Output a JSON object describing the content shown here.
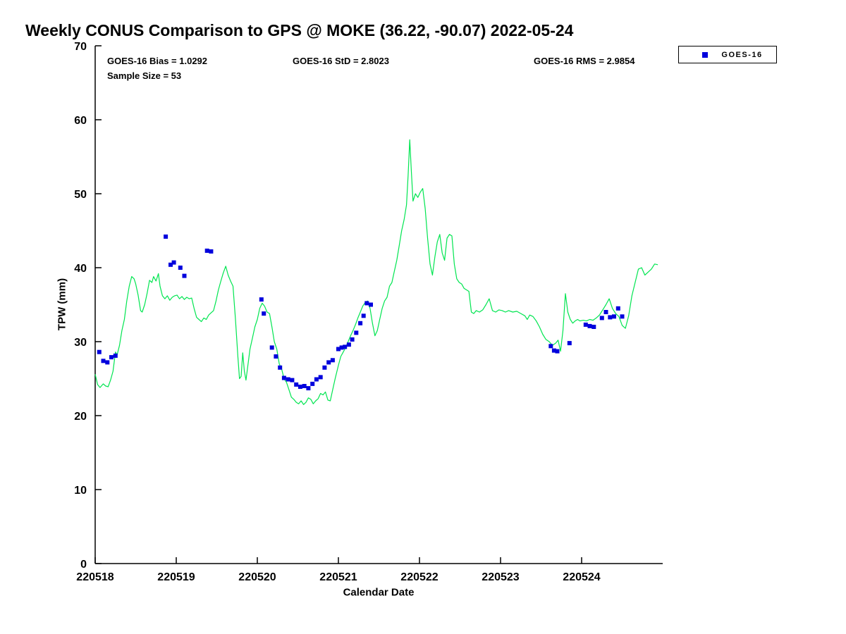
{
  "figure": {
    "title": "Weekly CONUS Comparison to GPS @ MOKE (36.22, -90.07) 2022-05-24",
    "annotations": {
      "bias": "GOES-16 Bias = 1.0292",
      "std": "GOES-16 StD = 2.8023",
      "rms": "GOES-16 RMS = 2.9854",
      "sample_size": "Sample Size = 53"
    },
    "legend": {
      "entries": [
        {
          "label": "GOES-16",
          "marker": "square",
          "color": "#0000dd"
        }
      ]
    }
  },
  "chart_data": {
    "type": "line",
    "title": "Weekly CONUS Comparison to GPS @ MOKE (36.22, -90.07) 2022-05-24",
    "xlabel": "Calendar Date",
    "ylabel": "TPW (mm)",
    "xlim_days": [
      0,
      7
    ],
    "ylim": [
      0,
      70
    ],
    "grid": false,
    "legend_position": "top-right-outside",
    "xticks": [
      {
        "day": 0,
        "label": "220518"
      },
      {
        "day": 1,
        "label": "220519"
      },
      {
        "day": 2,
        "label": "220520"
      },
      {
        "day": 3,
        "label": "220521"
      },
      {
        "day": 4,
        "label": "220522"
      },
      {
        "day": 5,
        "label": "220523"
      },
      {
        "day": 6,
        "label": "220524"
      }
    ],
    "yticks": [
      0,
      10,
      20,
      30,
      40,
      50,
      60,
      70
    ],
    "stats": {
      "bias": 1.0292,
      "std": 2.8023,
      "rms": 2.9854,
      "sample_size": 53
    },
    "series": [
      {
        "name": "GPS",
        "type": "line",
        "color": "#00e550",
        "points": [
          [
            0.0,
            25.6
          ],
          [
            0.03,
            24.2
          ],
          [
            0.06,
            23.8
          ],
          [
            0.1,
            24.3
          ],
          [
            0.13,
            24.0
          ],
          [
            0.16,
            23.9
          ],
          [
            0.19,
            24.8
          ],
          [
            0.22,
            26.0
          ],
          [
            0.25,
            28.6
          ],
          [
            0.27,
            28.2
          ],
          [
            0.3,
            29.5
          ],
          [
            0.33,
            31.5
          ],
          [
            0.36,
            33.0
          ],
          [
            0.39,
            35.5
          ],
          [
            0.42,
            37.5
          ],
          [
            0.45,
            38.8
          ],
          [
            0.48,
            38.5
          ],
          [
            0.5,
            37.8
          ],
          [
            0.53,
            36.3
          ],
          [
            0.56,
            34.2
          ],
          [
            0.58,
            34.0
          ],
          [
            0.61,
            35.0
          ],
          [
            0.64,
            36.5
          ],
          [
            0.67,
            38.3
          ],
          [
            0.7,
            38.0
          ],
          [
            0.72,
            38.8
          ],
          [
            0.75,
            38.2
          ],
          [
            0.78,
            39.2
          ],
          [
            0.8,
            37.5
          ],
          [
            0.83,
            36.2
          ],
          [
            0.86,
            35.8
          ],
          [
            0.89,
            36.2
          ],
          [
            0.92,
            35.6
          ],
          [
            0.95,
            36.0
          ],
          [
            0.98,
            36.2
          ],
          [
            1.01,
            36.3
          ],
          [
            1.04,
            35.8
          ],
          [
            1.07,
            36.1
          ],
          [
            1.1,
            35.7
          ],
          [
            1.13,
            36.0
          ],
          [
            1.16,
            35.8
          ],
          [
            1.19,
            35.9
          ],
          [
            1.22,
            34.5
          ],
          [
            1.25,
            33.3
          ],
          [
            1.28,
            33.0
          ],
          [
            1.31,
            32.7
          ],
          [
            1.34,
            33.2
          ],
          [
            1.37,
            33.0
          ],
          [
            1.4,
            33.6
          ],
          [
            1.43,
            33.9
          ],
          [
            1.46,
            34.2
          ],
          [
            1.49,
            35.5
          ],
          [
            1.52,
            37.0
          ],
          [
            1.55,
            38.2
          ],
          [
            1.58,
            39.3
          ],
          [
            1.61,
            40.2
          ],
          [
            1.64,
            39.0
          ],
          [
            1.67,
            38.2
          ],
          [
            1.7,
            37.5
          ],
          [
            1.73,
            33.0
          ],
          [
            1.76,
            28.0
          ],
          [
            1.78,
            25.0
          ],
          [
            1.8,
            25.3
          ],
          [
            1.82,
            28.5
          ],
          [
            1.84,
            26.0
          ],
          [
            1.86,
            24.8
          ],
          [
            1.88,
            26.5
          ],
          [
            1.91,
            29.0
          ],
          [
            1.94,
            30.5
          ],
          [
            1.97,
            32.0
          ],
          [
            2.0,
            33.0
          ],
          [
            2.03,
            34.5
          ],
          [
            2.06,
            35.2
          ],
          [
            2.09,
            34.8
          ],
          [
            2.12,
            34.0
          ],
          [
            2.15,
            33.8
          ],
          [
            2.18,
            32.0
          ],
          [
            2.21,
            30.0
          ],
          [
            2.24,
            29.0
          ],
          [
            2.27,
            27.0
          ],
          [
            2.3,
            26.3
          ],
          [
            2.33,
            25.0
          ],
          [
            2.36,
            24.5
          ],
          [
            2.39,
            23.5
          ],
          [
            2.42,
            22.5
          ],
          [
            2.45,
            22.2
          ],
          [
            2.48,
            21.8
          ],
          [
            2.51,
            21.6
          ],
          [
            2.54,
            22.0
          ],
          [
            2.57,
            21.5
          ],
          [
            2.6,
            21.8
          ],
          [
            2.63,
            22.4
          ],
          [
            2.66,
            22.2
          ],
          [
            2.69,
            21.6
          ],
          [
            2.72,
            22.0
          ],
          [
            2.75,
            22.3
          ],
          [
            2.78,
            23.0
          ],
          [
            2.81,
            22.8
          ],
          [
            2.84,
            23.2
          ],
          [
            2.87,
            22.1
          ],
          [
            2.9,
            22.0
          ],
          [
            2.93,
            23.5
          ],
          [
            2.96,
            25.0
          ],
          [
            3.0,
            26.8
          ],
          [
            3.03,
            28.0
          ],
          [
            3.06,
            28.6
          ],
          [
            3.09,
            29.2
          ],
          [
            3.12,
            30.0
          ],
          [
            3.15,
            30.8
          ],
          [
            3.18,
            31.5
          ],
          [
            3.21,
            32.3
          ],
          [
            3.24,
            33.2
          ],
          [
            3.27,
            34.0
          ],
          [
            3.3,
            34.8
          ],
          [
            3.33,
            35.3
          ],
          [
            3.36,
            35.5
          ],
          [
            3.39,
            34.5
          ],
          [
            3.42,
            32.5
          ],
          [
            3.45,
            30.8
          ],
          [
            3.48,
            31.5
          ],
          [
            3.51,
            33.0
          ],
          [
            3.54,
            34.5
          ],
          [
            3.57,
            35.5
          ],
          [
            3.6,
            36.0
          ],
          [
            3.63,
            37.5
          ],
          [
            3.66,
            38.0
          ],
          [
            3.69,
            39.5
          ],
          [
            3.72,
            41.0
          ],
          [
            3.75,
            43.0
          ],
          [
            3.78,
            45.0
          ],
          [
            3.81,
            46.5
          ],
          [
            3.84,
            48.5
          ],
          [
            3.86,
            52.5
          ],
          [
            3.88,
            57.3
          ],
          [
            3.9,
            53.0
          ],
          [
            3.92,
            49.0
          ],
          [
            3.95,
            50.0
          ],
          [
            3.98,
            49.5
          ],
          [
            4.01,
            50.2
          ],
          [
            4.04,
            50.7
          ],
          [
            4.07,
            48.0
          ],
          [
            4.1,
            44.0
          ],
          [
            4.13,
            40.5
          ],
          [
            4.16,
            39.0
          ],
          [
            4.19,
            41.5
          ],
          [
            4.22,
            43.5
          ],
          [
            4.25,
            44.5
          ],
          [
            4.28,
            42.0
          ],
          [
            4.31,
            41.0
          ],
          [
            4.34,
            44.0
          ],
          [
            4.37,
            44.5
          ],
          [
            4.4,
            44.3
          ],
          [
            4.43,
            40.5
          ],
          [
            4.46,
            38.5
          ],
          [
            4.49,
            38.0
          ],
          [
            4.52,
            37.8
          ],
          [
            4.55,
            37.2
          ],
          [
            4.58,
            37.0
          ],
          [
            4.61,
            36.8
          ],
          [
            4.64,
            34.0
          ],
          [
            4.67,
            33.8
          ],
          [
            4.7,
            34.2
          ],
          [
            4.74,
            34.0
          ],
          [
            4.78,
            34.3
          ],
          [
            4.82,
            35.0
          ],
          [
            4.86,
            35.8
          ],
          [
            4.9,
            34.2
          ],
          [
            4.94,
            34.0
          ],
          [
            4.98,
            34.3
          ],
          [
            5.02,
            34.2
          ],
          [
            5.06,
            34.0
          ],
          [
            5.1,
            34.2
          ],
          [
            5.15,
            34.0
          ],
          [
            5.2,
            34.1
          ],
          [
            5.25,
            33.8
          ],
          [
            5.3,
            33.5
          ],
          [
            5.33,
            33.0
          ],
          [
            5.36,
            33.6
          ],
          [
            5.4,
            33.4
          ],
          [
            5.44,
            32.8
          ],
          [
            5.48,
            32.0
          ],
          [
            5.52,
            31.0
          ],
          [
            5.56,
            30.3
          ],
          [
            5.6,
            30.0
          ],
          [
            5.64,
            29.5
          ],
          [
            5.68,
            29.8
          ],
          [
            5.71,
            30.2
          ],
          [
            5.74,
            28.7
          ],
          [
            5.77,
            31.5
          ],
          [
            5.8,
            36.5
          ],
          [
            5.83,
            34.0
          ],
          [
            5.86,
            33.0
          ],
          [
            5.89,
            32.5
          ],
          [
            5.92,
            32.8
          ],
          [
            5.95,
            33.0
          ],
          [
            5.98,
            32.8
          ],
          [
            6.02,
            32.9
          ],
          [
            6.06,
            32.8
          ],
          [
            6.1,
            33.0
          ],
          [
            6.14,
            32.9
          ],
          [
            6.18,
            33.2
          ],
          [
            6.22,
            33.6
          ],
          [
            6.26,
            34.3
          ],
          [
            6.3,
            35.0
          ],
          [
            6.34,
            35.8
          ],
          [
            6.38,
            34.5
          ],
          [
            6.42,
            33.8
          ],
          [
            6.46,
            33.4
          ],
          [
            6.5,
            32.2
          ],
          [
            6.54,
            31.8
          ],
          [
            6.58,
            33.5
          ],
          [
            6.62,
            36.2
          ],
          [
            6.66,
            38.0
          ],
          [
            6.7,
            39.8
          ],
          [
            6.74,
            40.0
          ],
          [
            6.78,
            39.0
          ],
          [
            6.82,
            39.4
          ],
          [
            6.86,
            39.8
          ],
          [
            6.9,
            40.5
          ],
          [
            6.94,
            40.4
          ]
        ]
      },
      {
        "name": "GOES-16",
        "type": "scatter",
        "marker": "square",
        "color": "#0000dd",
        "points": [
          [
            0.05,
            28.6
          ],
          [
            0.1,
            27.4
          ],
          [
            0.15,
            27.2
          ],
          [
            0.2,
            27.9
          ],
          [
            0.25,
            28.1
          ],
          [
            0.87,
            44.2
          ],
          [
            0.93,
            40.4
          ],
          [
            0.97,
            40.7
          ],
          [
            1.05,
            40.0
          ],
          [
            1.1,
            38.9
          ],
          [
            1.38,
            42.3
          ],
          [
            1.43,
            42.2
          ],
          [
            2.05,
            35.7
          ],
          [
            2.08,
            33.8
          ],
          [
            2.18,
            29.2
          ],
          [
            2.23,
            28.0
          ],
          [
            2.28,
            26.5
          ],
          [
            2.33,
            25.1
          ],
          [
            2.38,
            24.9
          ],
          [
            2.43,
            24.8
          ],
          [
            2.48,
            24.2
          ],
          [
            2.53,
            23.9
          ],
          [
            2.58,
            24.0
          ],
          [
            2.63,
            23.7
          ],
          [
            2.68,
            24.3
          ],
          [
            2.73,
            24.9
          ],
          [
            2.78,
            25.2
          ],
          [
            2.83,
            26.5
          ],
          [
            2.88,
            27.2
          ],
          [
            2.93,
            27.5
          ],
          [
            3.0,
            29.0
          ],
          [
            3.04,
            29.2
          ],
          [
            3.08,
            29.3
          ],
          [
            3.13,
            29.6
          ],
          [
            3.17,
            30.3
          ],
          [
            3.22,
            31.2
          ],
          [
            3.27,
            32.5
          ],
          [
            3.31,
            33.5
          ],
          [
            3.35,
            35.2
          ],
          [
            3.4,
            35.0
          ],
          [
            5.62,
            29.4
          ],
          [
            5.66,
            28.8
          ],
          [
            5.7,
            28.7
          ],
          [
            5.85,
            29.8
          ],
          [
            6.05,
            32.3
          ],
          [
            6.1,
            32.1
          ],
          [
            6.15,
            32.0
          ],
          [
            6.25,
            33.2
          ],
          [
            6.3,
            34.0
          ],
          [
            6.35,
            33.3
          ],
          [
            6.4,
            33.4
          ],
          [
            6.45,
            34.5
          ],
          [
            6.5,
            33.4
          ]
        ]
      }
    ]
  }
}
